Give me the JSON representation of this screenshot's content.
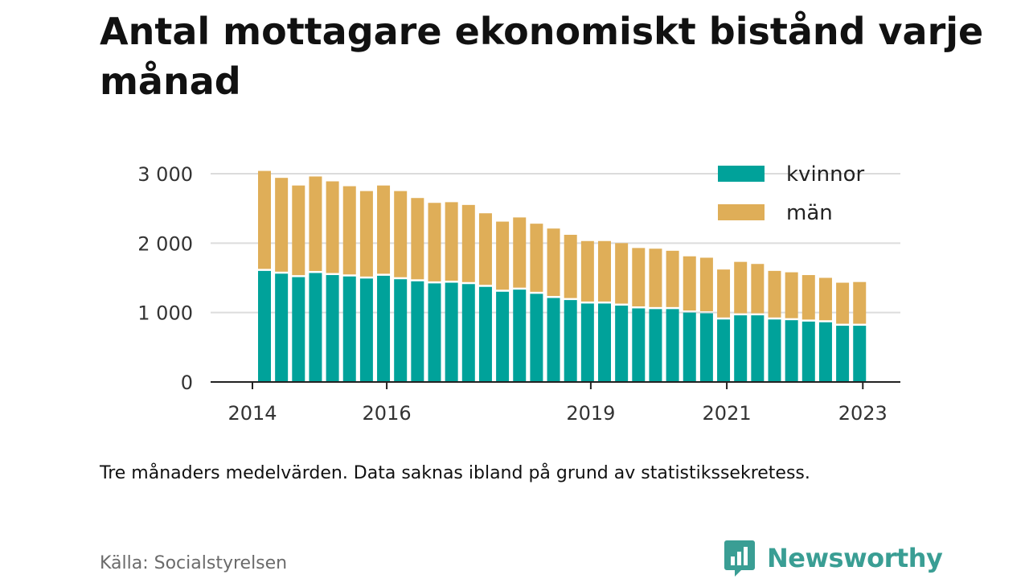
{
  "title": "Antal mottagare ekonomiskt bistånd varje månad",
  "note": "Tre månaders medelvärden. Data saknas ibland på grund av statistikssekretess.",
  "source": "Källa: Socialstyrelsen",
  "brand": {
    "name": "Newsworthy",
    "icon": "newsworthy-logo-icon",
    "color": "#3a9e94"
  },
  "chart_data": {
    "type": "bar",
    "stacked": true,
    "title": "",
    "xlabel": "",
    "ylabel": "",
    "ylim": [
      0,
      3000
    ],
    "yticks": [
      0,
      1000,
      2000,
      3000
    ],
    "ytick_labels": [
      "0",
      "1 000",
      "2 000",
      "3 000"
    ],
    "xticks": [
      {
        "label": "2014",
        "at": 0
      },
      {
        "label": "2016",
        "at": 7.9
      },
      {
        "label": "2019",
        "at": 19.9
      },
      {
        "label": "2021",
        "at": 27.9
      },
      {
        "label": "2023",
        "at": 35.9
      }
    ],
    "grid": true,
    "legend_position": "top-right",
    "series": [
      {
        "name": "kvinnor",
        "color": "#00a29a",
        "values": [
          1600,
          1560,
          1510,
          1570,
          1540,
          1520,
          1490,
          1530,
          1480,
          1450,
          1420,
          1430,
          1410,
          1370,
          1300,
          1330,
          1270,
          1210,
          1180,
          1130,
          1130,
          1100,
          1060,
          1050,
          1050,
          1000,
          990,
          900,
          960,
          960,
          900,
          890,
          870,
          860,
          810,
          810
        ]
      },
      {
        "name": "män",
        "color": "#dfae58",
        "values": [
          1440,
          1380,
          1320,
          1390,
          1350,
          1300,
          1260,
          1300,
          1270,
          1200,
          1160,
          1160,
          1140,
          1060,
          1010,
          1040,
          1010,
          1000,
          940,
          900,
          900,
          900,
          870,
          870,
          840,
          810,
          800,
          720,
          770,
          740,
          700,
          690,
          670,
          640,
          620,
          630
        ]
      }
    ]
  }
}
